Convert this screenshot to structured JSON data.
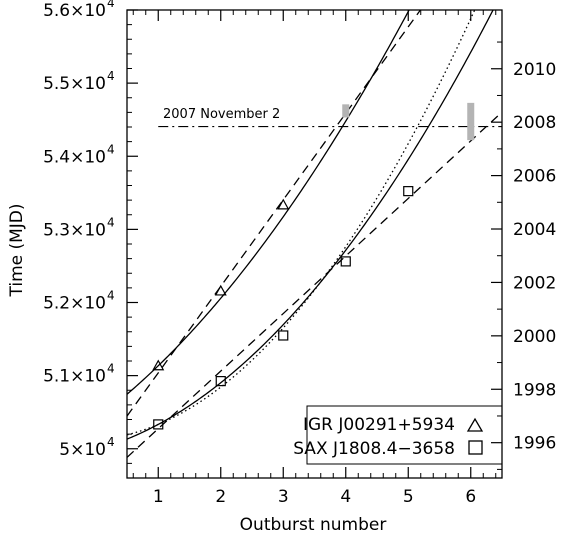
{
  "chart_data": {
    "type": "scatter",
    "xlabel": "Outburst number",
    "ylabel": "Time (MJD)",
    "xlim": [
      0.5,
      6.5
    ],
    "ylim": [
      49600,
      56000
    ],
    "x_ticks": [
      1,
      2,
      3,
      4,
      5,
      6
    ],
    "y_ticks": [
      {
        "value": 50000,
        "mantissa": "5",
        "exponent": "4"
      },
      {
        "value": 51000,
        "mantissa": "5.1",
        "exponent": "4"
      },
      {
        "value": 52000,
        "mantissa": "5.2",
        "exponent": "4"
      },
      {
        "value": 53000,
        "mantissa": "5.3",
        "exponent": "4"
      },
      {
        "value": 54000,
        "mantissa": "5.4",
        "exponent": "4"
      },
      {
        "value": 55000,
        "mantissa": "5.5",
        "exponent": "4"
      },
      {
        "value": 56000,
        "mantissa": "5.6",
        "exponent": "4"
      }
    ],
    "right_axis": {
      "label": "",
      "ticks": [
        1996,
        1998,
        2000,
        2002,
        2004,
        2006,
        2008,
        2010
      ],
      "year_start_mjd": 50083,
      "days_per_year": 365.25
    },
    "series": [
      {
        "name": "IGR J00291+5934",
        "marker": "triangle",
        "x": [
          1,
          2,
          3
        ],
        "y": [
          51135,
          52158,
          53335
        ],
        "fit_quadratic": [
          51135,
          827,
          96
        ],
        "fit_linear": [
          49855,
          1183
        ],
        "predicted_bar": {
          "x": 4,
          "y_low": 54530,
          "y_high": 54710
        }
      },
      {
        "name": "SAX J1808.4−3658",
        "marker": "square",
        "x": [
          1,
          2,
          3,
          4,
          5
        ],
        "y": [
          50333,
          50925,
          51549,
          52562,
          53523
        ],
        "fit_quadratic": [
          50333,
          458,
          112
        ],
        "fit_dotted": [
          50333,
          360,
          150
        ],
        "fit_linear": [
          49488,
          787
        ],
        "predicted_bar": {
          "x": 6,
          "y_low": 54220,
          "y_high": 54730
        }
      }
    ],
    "annotations": [
      {
        "text": "2007 November 2",
        "y": 54406,
        "x_from": 1.0,
        "x_to": 6.5,
        "style": "dash-dot"
      }
    ],
    "legend": {
      "position": "bottom-right",
      "entries": [
        {
          "text": "IGR J00291+5934",
          "marker": "triangle"
        },
        {
          "text": "SAX J1808.4−3658",
          "marker": "square"
        }
      ]
    }
  },
  "colors": {
    "line": "#000000",
    "bar": "#b4b4b4"
  }
}
